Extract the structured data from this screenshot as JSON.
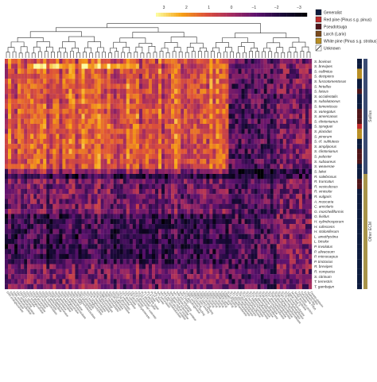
{
  "chart_data": {
    "type": "heatmap",
    "title": "",
    "xlabel": "",
    "ylabel": "",
    "colorbar": {
      "ticks": [
        "3",
        "2",
        "1",
        "0",
        "−1",
        "−2",
        "−3"
      ],
      "colors": [
        "#fcffa4",
        "#f7a214",
        "#dd513a",
        "#a52c60",
        "#5c126e",
        "#1a0a3a",
        "#000004"
      ]
    },
    "rows": [
      "S. bovinus",
      "S. brevipes",
      "S. collinitus",
      "S. decipiens",
      "S. fuscotomentosus",
      "S. hirtellus",
      "S. luteus",
      "S. occidentalis",
      "S. subalutaceus",
      "S. tomentosus",
      "S. variegatus",
      "S. americanus",
      "S. clintonianus",
      "S. spraguei",
      "S. placidus",
      "S. pinorum",
      "S. cf. subluteus",
      "S. ampliporus",
      "S. clintonianus",
      "S. paluster",
      "S. subaureus",
      "S. weaverae",
      "S. lakei",
      "R. salebrosus",
      "R. truncatus",
      "R. vesiculosus",
      "R. vinicolor",
      "R. vulgaris",
      "A. muscaria",
      "C. ancolaris",
      "G. morchelliformis",
      "G. lividus",
      "H. cylindrosporum",
      "H. rufescens",
      "H. stoloniferum",
      "L. amethystina",
      "L. bicolor",
      "P. involutus",
      "P. alivaceum",
      "P. microcarpus",
      "P. tinctorius",
      "R. brevipes",
      "R. compacta",
      "S. citrinum",
      "T. terrestris",
      "T. gambajun"
    ],
    "columns": [
      "GH5 endoglucanase",
      "GH5 mannanase",
      "GH6 cellobiohydrolase",
      "GH7 cellobiohydrolase",
      "GH10 xylanase",
      "GH11 xylanase",
      "GH12 endoglucanase",
      "GH15 glucoamylase",
      "GH16 glucanase",
      "GH18 chitinase",
      "GH20 hexosaminidase",
      "GH26 mannanase",
      "GH27 galactosidase",
      "GH28 polygalacturonase",
      "GH31 glucosidase",
      "GH35 galactosidase",
      "GH43 arabinanase",
      "GH45 endoglucanase",
      "GH51 arabinofuranosidase",
      "GH53 galactanase",
      "GH61 LPMO",
      "GH62 arabinofuranosidase",
      "GH63 glucosidase",
      "GH71 glucanase",
      "GH72 transglycosylase",
      "GH74 xyloglucanase",
      "GH76 mannosidase",
      "GH78 rhamnosidase",
      "GH79 glucuronidase",
      "GH88 hydrolase",
      "GH92 mannosidase",
      "GH93 arabinanase",
      "GH105 hydrolase",
      "GH115 glucuronidase",
      "GH128 glucanase",
      "CE1 esterase",
      "CE4 deacetylase",
      "CE5 cutinase",
      "CE8 pectin methylesterase",
      "CE12 esterase",
      "CE15 glucuronoyl esterase",
      "CE16 esterase",
      "PL1 pectate lyase",
      "PL3 pectate lyase",
      "PL4 lyase",
      "PL14 lyase",
      "AA1 laccase",
      "AA2 peroxidase",
      "AA3 GMC oxidoreductase",
      "AA4 vanillyl-alcohol oxidase",
      "AA5 copper radical oxidase",
      "AA6 quinone reductase",
      "AA7 oligosaccharide oxidase",
      "AA8 iron reductase",
      "AA9 LPMO",
      "AA12 dehydrogenase",
      "CBM1 cellulose binding",
      "CBM13 binding",
      "CBM18 chitin binding",
      "CBM20 starch binding",
      "CBM21 binding",
      "CBM24 binding",
      "CBM32 binding",
      "CBM35 binding",
      "CBM43 binding",
      "CBM48 binding",
      "CBM50 LysM",
      "CBM63 binding",
      "CBM67 binding",
      "GT1 glycosyltransferase",
      "GT2 glycosyltransferase",
      "GT4 glycosyltransferase",
      "GT8 glycosyltransferase",
      "GT15 glycosyltransferase",
      "GT20 trehalose synthase",
      "GT22 mannosyltransferase",
      "GT31 glycosyltransferase",
      "GT32 glycosyltransferase",
      "GT39 mannosyltransferase",
      "GT48 glucan synthase",
      "GT50 mannosyltransferase",
      "GT57 glucosyltransferase",
      "GT58 mannosyltransferase",
      "GT59 glucosyltransferase",
      "GT66 oligosaccharyltransferase",
      "GT69 mannosyltransferase",
      "GT76 mannosyltransferase",
      "GT90 xylosyltransferase",
      "Lipase class 3",
      "Secreted protease",
      "Small secreted protein",
      "Tyrosinase",
      "Cytochrome P450",
      "Expansin-like",
      "Hydrophobin",
      "Cerato-platanin"
    ],
    "highlighted_column_indices": [
      7,
      10,
      13,
      20,
      31,
      35,
      49,
      63,
      64,
      76,
      78,
      83
    ],
    "row_colors": [
      "#0d1b3e",
      "#0d1b3e",
      "#b98f25",
      "#b98f25",
      "#0d1b3e",
      "#0d1b3e",
      "#4f1519",
      "#0d1b3e",
      "#0d1b3e",
      "#0d1b3e",
      "#4f1519",
      "#4f1519",
      "#4f1519",
      "#c02b2b",
      "#b98f25",
      "#b98f25",
      "#0d1b3e",
      "#0d1b3e",
      "#4f1519",
      "#4f1519",
      "#4f1519",
      "#0d1b3e",
      "#0d1b3e",
      "#0d1b3e",
      "#4f1519",
      "#4f1519",
      "#0d1b3e",
      "#0d1b3e",
      "#0d1b3e",
      "#0d1b3e",
      "#0d1b3e",
      "#0d1b3e",
      "#0d1b3e",
      "#0d1b3e",
      "#0d1b3e",
      "#0d1b3e",
      "#0d1b3e",
      "#0d1b3e",
      "#0d1b3e",
      "#0d1b3e",
      "#0d1b3e",
      "#0d1b3e",
      "#0d1b3e",
      "#0d1b3e",
      "#0d1b3e",
      "#0d1b3e"
    ],
    "groups": [
      {
        "label": "Suillus",
        "start": 0,
        "end": 22,
        "color": "#3b4c73"
      },
      {
        "label": "Other ECM",
        "start": 23,
        "end": 45,
        "color": "#a8944a"
      }
    ],
    "legend": [
      {
        "label": "Generalist",
        "color": "#0d1b3e"
      },
      {
        "label": "Red pine (Pinus s.g. pinus)",
        "color": "#c02b2b"
      },
      {
        "label": "Pseudotsuga",
        "color": "#4f1519"
      },
      {
        "label": "Larch (Larix)",
        "color": "#7a4a1d"
      },
      {
        "label": "White pine (Pinus s.g. strobus)",
        "color": "#b98f25"
      },
      {
        "label": "Unknown",
        "color": "#ffffff"
      }
    ],
    "legend_placement": "top-right",
    "grid": false
  }
}
